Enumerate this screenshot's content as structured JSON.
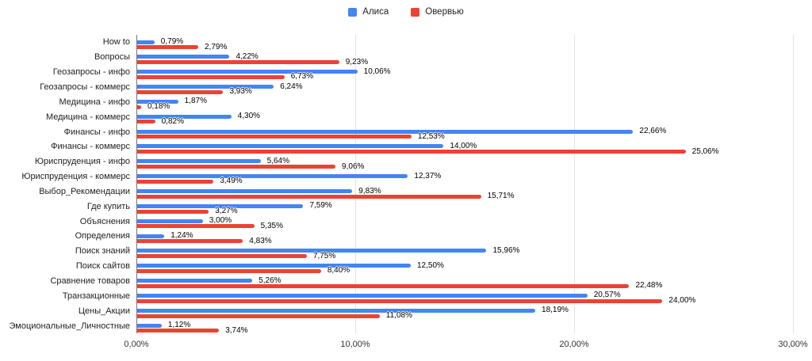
{
  "chart_data": {
    "type": "bar",
    "orientation": "horizontal",
    "title": "",
    "categories": [
      "How to",
      "Вопросы",
      "Геозапросы - инфо",
      "Геозапросы - коммерс",
      "Медицина - инфо",
      "Медицина - коммерс",
      "Финансы - инфо",
      "Финансы - коммерс",
      "Юриспруденция - инфо",
      "Юриспруденция - коммерс",
      "Выбор_Рекомендации",
      "Где купить",
      "Объяснения",
      "Определения",
      "Поиск знаний",
      "Поиск сайтов",
      "Сравнение товаров",
      "Транзакционные",
      "Цены_Акции",
      "Эмоциональные_Личностные"
    ],
    "series": [
      {
        "id": "alisa",
        "name": "Алиса",
        "color": "#4285F4",
        "values": [
          0.79,
          4.22,
          10.06,
          6.24,
          1.87,
          4.3,
          22.66,
          14.0,
          5.64,
          12.37,
          9.83,
          7.59,
          3.0,
          1.24,
          15.96,
          12.5,
          5.26,
          20.57,
          18.19,
          1.12
        ],
        "labels": [
          "0,79%",
          "4,22%",
          "10,06%",
          "6,24%",
          "1,87%",
          "4,30%",
          "22,66%",
          "14,00%",
          "5,64%",
          "12,37%",
          "9,83%",
          "7,59%",
          "3,00%",
          "1,24%",
          "15,96%",
          "12,50%",
          "5,26%",
          "20,57%",
          "18,19%",
          "1,12%"
        ]
      },
      {
        "id": "overview",
        "name": "Овервью",
        "color": "#EA4335",
        "values": [
          2.79,
          9.23,
          6.73,
          3.93,
          0.18,
          0.82,
          12.53,
          25.06,
          9.06,
          3.49,
          15.71,
          3.27,
          5.35,
          4.83,
          7.75,
          8.4,
          22.48,
          24.0,
          11.08,
          3.74
        ],
        "labels": [
          "2,79%",
          "9,23%",
          "6,73%",
          "3,93%",
          "0,18%",
          "0,82%",
          "12,53%",
          "25,06%",
          "9,06%",
          "3,49%",
          "15,71%",
          "3,27%",
          "5,35%",
          "4,83%",
          "7,75%",
          "8,40%",
          "22,48%",
          "24,00%",
          "11,08%",
          "3,74%"
        ]
      }
    ],
    "xlim": [
      0,
      30
    ],
    "x_ticks": [
      {
        "value": 0,
        "label": "0,00%"
      },
      {
        "value": 10,
        "label": "10,00%"
      },
      {
        "value": 20,
        "label": "20,00%"
      },
      {
        "value": 30,
        "label": "30,00%"
      }
    ],
    "grid": true,
    "legend_position": "top",
    "background": "#ffffff",
    "gridline_color": "#e3e3e3",
    "axis_line_color": "#757575"
  }
}
